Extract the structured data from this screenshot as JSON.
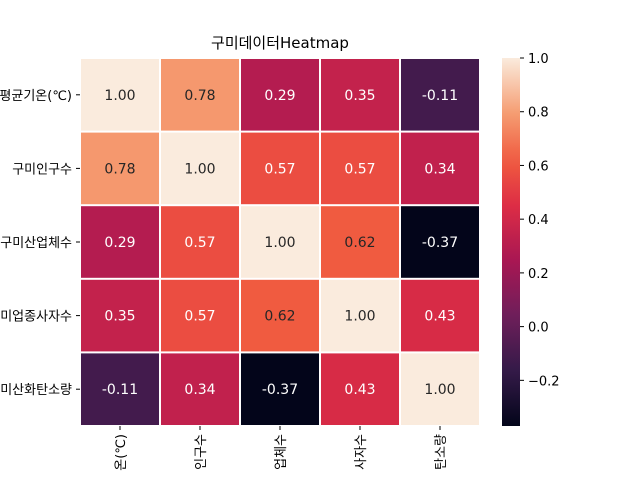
{
  "chart_data": {
    "type": "heatmap",
    "title": "구미데이터Heatmap",
    "row_labels": [
      "평균기온(℃)",
      "구미인구수",
      "구미산업체수",
      "구미업종사자수",
      "구미산화탄소량"
    ],
    "col_labels": [
      "온(℃)",
      "인구수",
      "업체수",
      "사자수",
      "탄소량"
    ],
    "values": [
      [
        1.0,
        0.78,
        0.29,
        0.35,
        -0.11
      ],
      [
        0.78,
        1.0,
        0.57,
        0.57,
        0.34
      ],
      [
        0.29,
        0.57,
        1.0,
        0.62,
        -0.37
      ],
      [
        0.35,
        0.57,
        0.62,
        1.0,
        0.43
      ],
      [
        -0.11,
        0.34,
        -0.37,
        0.43,
        1.0
      ]
    ],
    "cell_labels": [
      [
        "1.00",
        "0.78",
        "0.29",
        "0.35",
        "-0.11"
      ],
      [
        "0.78",
        "1.00",
        "0.57",
        "0.57",
        "0.34"
      ],
      [
        "0.29",
        "0.57",
        "1.00",
        "0.62",
        "-0.37"
      ],
      [
        "0.35",
        "0.57",
        "0.62",
        "1.00",
        "0.43"
      ],
      [
        "-0.11",
        "0.34",
        "-0.37",
        "0.43",
        "1.00"
      ]
    ],
    "colormap": "rocket",
    "vmin": -0.37,
    "vmax": 1.0,
    "colorbar_ticks": [
      1.0,
      0.8,
      0.6,
      0.4,
      0.2,
      0.0,
      -0.2
    ],
    "colorbar_tick_labels": [
      "1.0",
      "0.8",
      "0.6",
      "0.4",
      "0.2",
      "0.0",
      "−0.2"
    ],
    "annotations": true
  }
}
